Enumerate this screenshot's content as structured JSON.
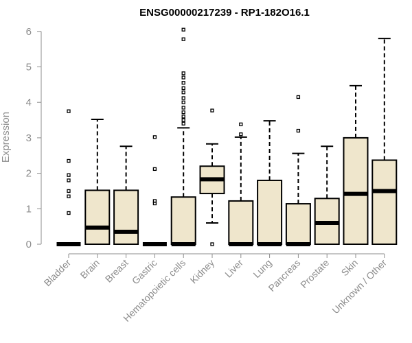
{
  "chart_data": {
    "type": "box",
    "title": "ENSG00000217239 - RP1-182O16.1",
    "ylabel": "Expression",
    "xlabel": "",
    "ylim": [
      0,
      6.2
    ],
    "yticks": [
      "0",
      "1",
      "2",
      "3",
      "4",
      "5",
      "6"
    ],
    "colors": {
      "box_fill": "#efe6cc",
      "stroke": "#000000",
      "axis": "#8c8c8c"
    },
    "categories": [
      "Bladder",
      "Brain",
      "Breast",
      "Gastric",
      "Hematopoietic cells",
      "Kidney",
      "Liver",
      "Lung",
      "Pancreas",
      "Prostate",
      "Skin",
      "Unknown / Other"
    ],
    "boxes": [
      {
        "category": "Bladder",
        "min": 0,
        "q1": 0,
        "median": 0,
        "q3": 0,
        "max": 0,
        "outliers": [
          3.75,
          2.35,
          1.95,
          1.8,
          1.5,
          1.35,
          0.88
        ]
      },
      {
        "category": "Brain",
        "min": 0,
        "q1": 0,
        "median": 0.47,
        "q3": 1.52,
        "max": 3.52,
        "outliers": []
      },
      {
        "category": "Breast",
        "min": 0,
        "q1": 0,
        "median": 0.35,
        "q3": 1.52,
        "max": 2.76,
        "outliers": []
      },
      {
        "category": "Gastric",
        "min": 0,
        "q1": 0,
        "median": 0,
        "q3": 0,
        "max": 0,
        "outliers": [
          3.02,
          2.12,
          1.22,
          1.15
        ]
      },
      {
        "category": "Hematopoietic cells",
        "min": 0,
        "q1": 0,
        "median": 0,
        "q3": 1.33,
        "max": 3.28,
        "outliers": [
          6.05,
          5.78,
          4.82,
          4.7,
          4.55,
          4.4,
          4.28,
          4.12,
          4.0,
          3.85,
          3.72,
          3.6,
          3.5,
          3.4
        ]
      },
      {
        "category": "Kidney",
        "min": 0.6,
        "q1": 1.43,
        "median": 1.83,
        "q3": 2.2,
        "max": 2.83,
        "outliers": [
          3.77,
          0.0
        ]
      },
      {
        "category": "Liver",
        "min": 0,
        "q1": 0,
        "median": 0,
        "q3": 1.22,
        "max": 3.02,
        "outliers": [
          3.38,
          3.1
        ]
      },
      {
        "category": "Lung",
        "min": 0,
        "q1": 0,
        "median": 0,
        "q3": 1.8,
        "max": 3.48,
        "outliers": []
      },
      {
        "category": "Pancreas",
        "min": 0,
        "q1": 0,
        "median": 0,
        "q3": 1.14,
        "max": 2.56,
        "outliers": [
          4.15,
          3.2
        ]
      },
      {
        "category": "Prostate",
        "min": 0,
        "q1": 0,
        "median": 0.6,
        "q3": 1.29,
        "max": 2.76,
        "outliers": []
      },
      {
        "category": "Skin",
        "min": 0,
        "q1": 0,
        "median": 1.42,
        "q3": 3.0,
        "max": 4.47,
        "outliers": []
      },
      {
        "category": "Unknown / Other",
        "min": 0,
        "q1": 0,
        "median": 1.5,
        "q3": 2.37,
        "max": 5.8,
        "outliers": []
      }
    ]
  }
}
